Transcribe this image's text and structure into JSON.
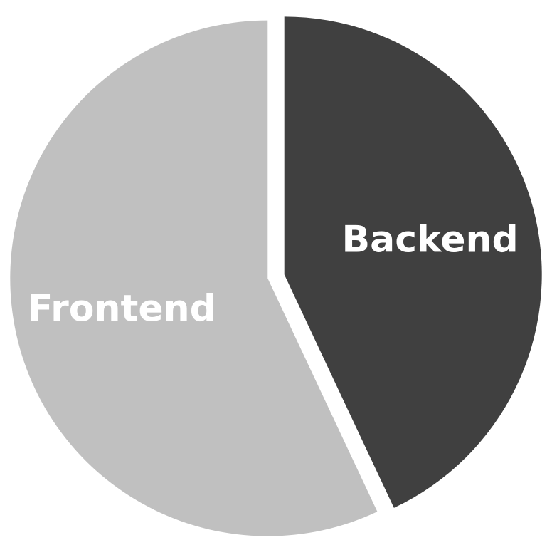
{
  "chart_data": {
    "type": "pie",
    "title": "",
    "start_angle_deg": 0,
    "direction": "clockwise",
    "exploded": true,
    "slices": [
      {
        "label": "Backend",
        "value": 43,
        "color": "#404040"
      },
      {
        "label": "Frontend",
        "value": 57,
        "color": "#c0c0c0"
      }
    ]
  }
}
